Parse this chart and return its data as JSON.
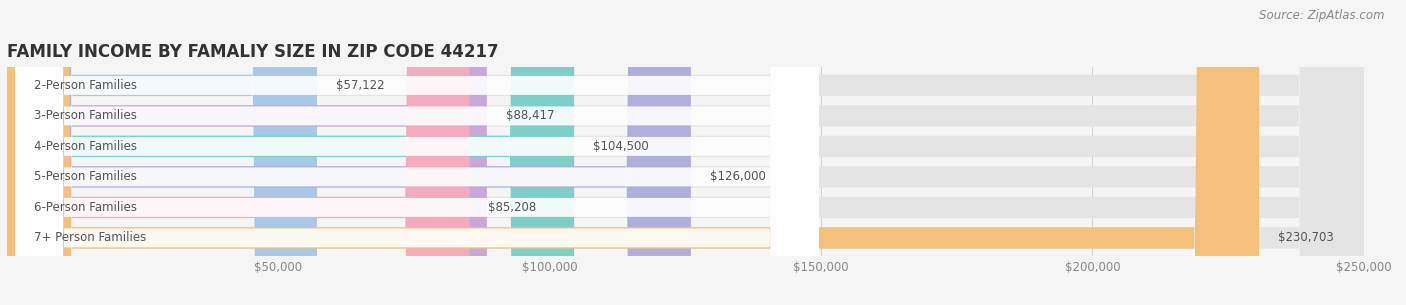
{
  "title": "FAMILY INCOME BY FAMALIY SIZE IN ZIP CODE 44217",
  "source": "Source: ZipAtlas.com",
  "categories": [
    "2-Person Families",
    "3-Person Families",
    "4-Person Families",
    "5-Person Families",
    "6-Person Families",
    "7+ Person Families"
  ],
  "values": [
    57122,
    88417,
    104500,
    126000,
    85208,
    230703
  ],
  "labels": [
    "$57,122",
    "$88,417",
    "$104,500",
    "$126,000",
    "$85,208",
    "$230,703"
  ],
  "bar_colors": [
    "#a8c8e8",
    "#c8a8d8",
    "#7ececa",
    "#b0aedd",
    "#f4aabf",
    "#f5c07a"
  ],
  "bg_color": "#f5f5f5",
  "bar_bg_color": "#e4e4e4",
  "xlim": [
    0,
    250000
  ],
  "xticks": [
    0,
    50000,
    100000,
    150000,
    200000,
    250000
  ],
  "xticklabels": [
    "",
    "$50,000",
    "$100,000",
    "$150,000",
    "$200,000",
    "$250,000"
  ],
  "title_fontsize": 12,
  "label_fontsize": 8.5,
  "tick_fontsize": 8.5,
  "source_fontsize": 8.5
}
